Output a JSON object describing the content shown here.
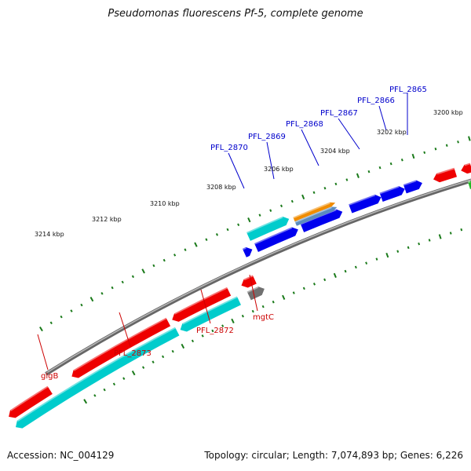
{
  "title": "Pseudomonas fluorescens Pf-5, complete genome",
  "footer": {
    "accession": "Accession: NC_004129",
    "summary": "Topology: circular; Length: 7,074,893 bp; Genes: 6,226"
  },
  "colors": {
    "backbone": "#808080",
    "ticks": "#1a7a1a",
    "label_top": "#0000cc",
    "label_bottom": "#cc0000",
    "red": "#ee0000",
    "cyan": "#00cccc",
    "blue": "#0000ee",
    "orange": "#f08c00",
    "steelblue": "#5a8cc0",
    "gray": "#707070",
    "green": "#22bb22"
  },
  "tick_labels": [
    "3200 kbp",
    "3202 kbp",
    "3204 kbp",
    "3206 kbp",
    "3208 kbp",
    "3210 kbp",
    "3212 kbp",
    "3214 kbp"
  ],
  "genes_top": [
    {
      "label": "PFL_2865"
    },
    {
      "label": "PFL_2866"
    },
    {
      "label": "PFL_2867"
    },
    {
      "label": "PFL_2868"
    },
    {
      "label": "PFL_2869"
    },
    {
      "label": "PFL_2870"
    }
  ],
  "genes_bottom": [
    {
      "label": "mgtC"
    },
    {
      "label": "PFL_2872"
    },
    {
      "label": "PFL_2873"
    },
    {
      "label": "glgB"
    }
  ]
}
